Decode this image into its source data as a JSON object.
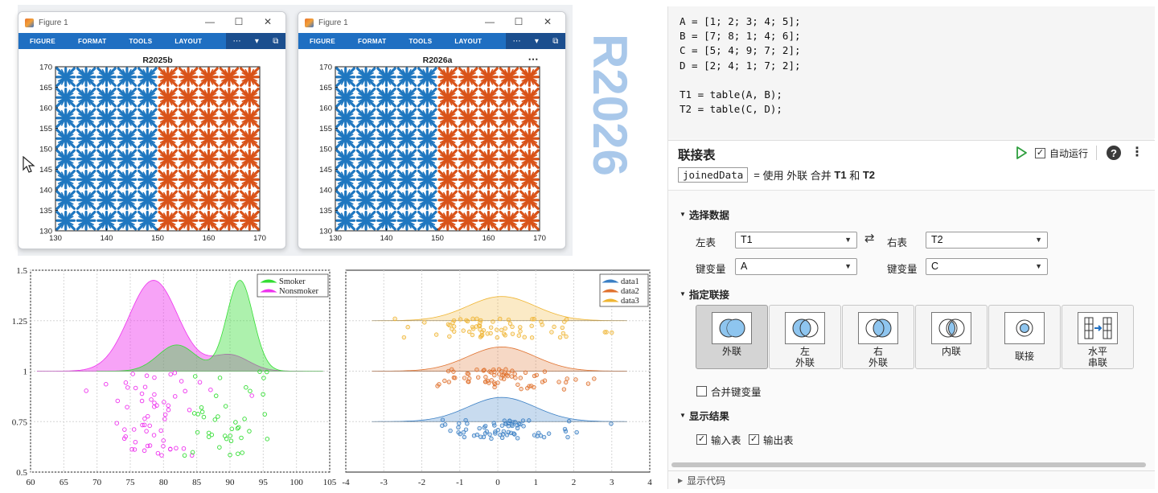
{
  "figures": [
    {
      "window_title": "Figure 1",
      "toolbar_tabs": [
        "FIGURE",
        "FORMAT",
        "TOOLS",
        "LAYOUT"
      ],
      "plot_title": "R2025b",
      "show_more": false,
      "x_ticks": [
        "130",
        "140",
        "150",
        "160",
        "170"
      ],
      "y_ticks": [
        "170",
        "165",
        "160",
        "155",
        "150",
        "145",
        "140",
        "135",
        "130"
      ]
    },
    {
      "window_title": "Figure 1",
      "toolbar_tabs": [
        "FIGURE",
        "FORMAT",
        "TOOLS",
        "LAYOUT"
      ],
      "plot_title": "R2026a",
      "show_more": true,
      "x_ticks": [
        "130",
        "140",
        "150",
        "160",
        "170"
      ],
      "y_ticks": [
        "170",
        "165",
        "160",
        "155",
        "150",
        "145",
        "140",
        "135",
        "130"
      ]
    }
  ],
  "release_text": "R2026",
  "colors": {
    "blue": "#1f77c0",
    "orange": "#d95319",
    "matlab_bar": "#1f6fc2",
    "run_green": "#2e9e3e"
  },
  "chart_data": [
    {
      "type": "area",
      "legend_position": "top-right",
      "series": [
        {
          "name": "Smoker",
          "color": "#33dd33",
          "peak_x": 91.5,
          "peak_y": 1.45
        },
        {
          "name": "Nonsmoker",
          "color": "#ee33ee",
          "peak_x": 78.5,
          "peak_y": 1.45
        }
      ],
      "x_ticks": [
        "60",
        "65",
        "70",
        "75",
        "80",
        "85",
        "90",
        "95",
        "100",
        "105"
      ],
      "y_ticks": [
        "1.5",
        "1.25",
        "1",
        "0.75",
        "0.5"
      ],
      "xlim": [
        60,
        105
      ],
      "ylim": [
        0.5,
        1.5
      ],
      "grid": true
    },
    {
      "type": "area",
      "legend_position": "top-right",
      "series": [
        {
          "name": "data1",
          "color": "#3a7fc4",
          "baseline": 0.75
        },
        {
          "name": "data2",
          "color": "#e0722f",
          "baseline": 1.0
        },
        {
          "name": "data3",
          "color": "#efb533",
          "baseline": 1.25
        }
      ],
      "x_ticks": [
        "-4",
        "-3",
        "-2",
        "-1",
        "0",
        "1",
        "2",
        "3",
        "4"
      ],
      "xlim": [
        -4,
        4
      ],
      "ylim": [
        0.5,
        1.5
      ],
      "grid": true
    }
  ],
  "editor": {
    "code_lines": [
      "A = [1; 2; 3; 4; 5];",
      "B = [7; 8; 1; 4; 6];",
      "C = [5; 4; 9; 7; 2];",
      "D = [2; 4; 1; 7; 2];",
      "",
      "T1 = table(A, B);",
      "T2 = table(C, D);"
    ],
    "task": {
      "title": "联接表",
      "auto_run_label": "自动运行",
      "output_var": "joinedData",
      "summary_eq": "=",
      "summary_use": "使用",
      "summary_type": "外联",
      "summary_merge": "合并",
      "summary_t1": "T1",
      "summary_and": "和",
      "summary_t2": "T2",
      "select_data_label": "选择数据",
      "left_table_label": "左表",
      "left_table_value": "T1",
      "right_table_label": "右表",
      "right_table_value": "T2",
      "left_key_label": "键变量",
      "left_key_value": "A",
      "right_key_label": "键变量",
      "right_key_value": "C",
      "specify_join_label": "指定联接",
      "join_types": [
        {
          "label_1": "外联",
          "label_2": ""
        },
        {
          "label_1": "左",
          "label_2": "外联"
        },
        {
          "label_1": "右",
          "label_2": "外联"
        },
        {
          "label_1": "内联",
          "label_2": ""
        },
        {
          "label_1": "联接",
          "label_2": ""
        },
        {
          "label_1": "水平",
          "label_2": "串联"
        }
      ],
      "merge_keys_label": "合并键变量",
      "merge_keys_checked": false,
      "display_results_label": "显示结果",
      "input_tables_label": "输入表",
      "input_tables_checked": true,
      "output_table_label": "输出表",
      "output_table_checked": true,
      "show_code_label": "显示代码"
    }
  }
}
